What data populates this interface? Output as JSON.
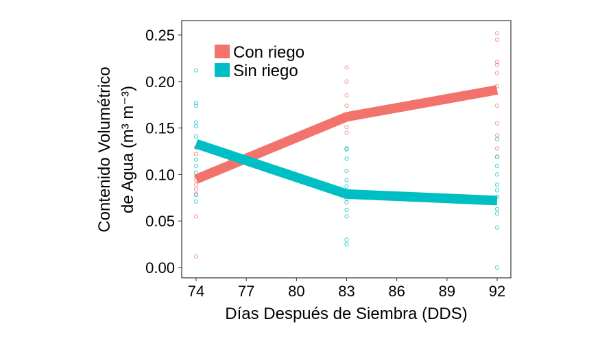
{
  "chart_data": {
    "type": "line",
    "xlabel": "Días Después de Siembra (DDS)",
    "ylabel_line1": "Contenido Volumétrico",
    "ylabel_line2": "de Agua (m³ m⁻³)",
    "xlim": [
      74,
      92
    ],
    "ylim": [
      0,
      0.25
    ],
    "xticks": [
      "74",
      "77",
      "80",
      "83",
      "86",
      "89",
      "92"
    ],
    "yticks": [
      "0.00",
      "0.05",
      "0.10",
      "0.15",
      "0.20",
      "0.25"
    ],
    "grid": false,
    "legend_position": "top-left",
    "series": [
      {
        "name": "Con riego",
        "color": "#F2736B",
        "x": [
          74,
          83,
          92
        ],
        "values": [
          0.095,
          0.162,
          0.191
        ],
        "points": [
          [
            74,
            0.129
          ],
          [
            74,
            0.122
          ],
          [
            74,
            0.098
          ],
          [
            74,
            0.094
          ],
          [
            74,
            0.089
          ],
          [
            74,
            0.084
          ],
          [
            74,
            0.079
          ],
          [
            74,
            0.055
          ],
          [
            74,
            0.012
          ],
          [
            83,
            0.215
          ],
          [
            83,
            0.2
          ],
          [
            83,
            0.185
          ],
          [
            83,
            0.174
          ],
          [
            83,
            0.151
          ],
          [
            83,
            0.145
          ],
          [
            92,
            0.252
          ],
          [
            92,
            0.245
          ],
          [
            92,
            0.221
          ],
          [
            92,
            0.218
          ],
          [
            92,
            0.209
          ],
          [
            92,
            0.195
          ],
          [
            92,
            0.174
          ],
          [
            92,
            0.155
          ],
          [
            92,
            0.142
          ],
          [
            92,
            0.128
          ],
          [
            92,
            0.119
          ]
        ]
      },
      {
        "name": "Sin riego",
        "color": "#00BFC4",
        "x": [
          74,
          83,
          92
        ],
        "values": [
          0.133,
          0.079,
          0.072
        ],
        "points": [
          [
            74,
            0.212
          ],
          [
            74,
            0.177
          ],
          [
            74,
            0.174
          ],
          [
            74,
            0.156
          ],
          [
            74,
            0.152
          ],
          [
            74,
            0.141
          ],
          [
            74,
            0.116
          ],
          [
            74,
            0.109
          ],
          [
            74,
            0.102
          ],
          [
            74,
            0.078
          ],
          [
            74,
            0.071
          ],
          [
            83,
            0.128
          ],
          [
            83,
            0.127
          ],
          [
            83,
            0.117
          ],
          [
            83,
            0.104
          ],
          [
            83,
            0.094
          ],
          [
            83,
            0.087
          ],
          [
            83,
            0.076
          ],
          [
            83,
            0.074
          ],
          [
            83,
            0.07
          ],
          [
            83,
            0.062
          ],
          [
            83,
            0.055
          ],
          [
            83,
            0.03
          ],
          [
            83,
            0.025
          ],
          [
            92,
            0.138
          ],
          [
            92,
            0.119
          ],
          [
            92,
            0.109
          ],
          [
            92,
            0.1
          ],
          [
            92,
            0.089
          ],
          [
            92,
            0.083
          ],
          [
            92,
            0.076
          ],
          [
            92,
            0.063
          ],
          [
            92,
            0.058
          ],
          [
            92,
            0.043
          ],
          [
            92,
            0.0
          ]
        ]
      }
    ]
  }
}
